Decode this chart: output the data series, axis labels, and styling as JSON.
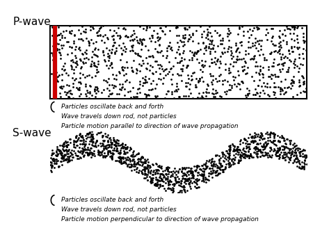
{
  "title_pwave": "P-wave",
  "title_swave": "S-wave",
  "pwave_text": [
    "Particles oscillate back and forth",
    "Wave travels down rod, not particles",
    "Particle motion parallel to direction of wave propagation"
  ],
  "swave_text": [
    "Particles oscillate back and forth",
    "Wave travels down rod, not particles",
    "Particle motion perpendicular to direction of wave propagation"
  ],
  "dot_color": "#000000",
  "background": "#ffffff",
  "box_color": "#000000",
  "red_line_color": "#cc0000",
  "n_pwave_dots": 1100,
  "n_swave_dots": 1400,
  "seed_p": 42,
  "seed_s": 7,
  "fig_width": 4.5,
  "fig_height": 3.38,
  "dpi": 100,
  "dot_size_p": 4.0,
  "dot_size_s": 4.0
}
